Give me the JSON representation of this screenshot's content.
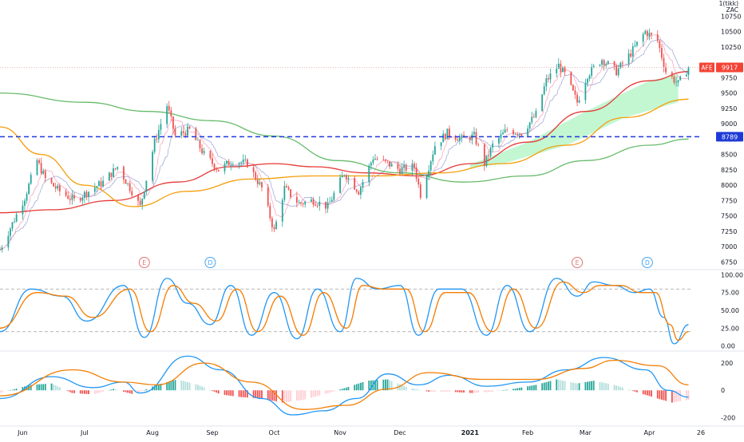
{
  "header": {
    "ticker_lines": [
      "1(tikk)",
      "ZAC"
    ]
  },
  "colors": {
    "up": "#26a69a",
    "down": "#ef5350",
    "ma_red": "#e53935",
    "ma_orange": "#f59e0b",
    "ma_green": "#66bb6a",
    "ma_thin_blue": "#7986cb",
    "ma_thin_pink": "#f48fb1",
    "fill_green": "#b9f6ca",
    "hline_blue": "#1e3ad6",
    "k_line": "#2196f3",
    "d_line": "#f57c00",
    "hist_up_strong": "#26a69a",
    "hist_up_weak": "#b2dfdb",
    "hist_down_strong": "#ef5350",
    "hist_down_weak": "#ffcdd2",
    "ref_line": "#9e9e9e"
  },
  "badges": {
    "price_tag": {
      "label": "AFE",
      "value": "9917"
    },
    "level_tag": {
      "value": "8789"
    }
  },
  "events": [
    {
      "type": "E",
      "date": "2020-07-30"
    },
    {
      "type": "D",
      "date": "2020-08-31"
    },
    {
      "type": "E",
      "date": "2021-02-25"
    },
    {
      "type": "D",
      "date": "2021-03-31"
    }
  ],
  "x_axis": {
    "labels": [
      {
        "text": "Jun",
        "date": "2020-06-01",
        "strong": false
      },
      {
        "text": "Jul",
        "date": "2020-07-01",
        "strong": false
      },
      {
        "text": "Aug",
        "date": "2020-08-03",
        "strong": false
      },
      {
        "text": "Sep",
        "date": "2020-09-01",
        "strong": false
      },
      {
        "text": "Oct",
        "date": "2020-10-01",
        "strong": false
      },
      {
        "text": "Nov",
        "date": "2020-11-02",
        "strong": false
      },
      {
        "text": "Dec",
        "date": "2020-12-01",
        "strong": false
      },
      {
        "text": "2021",
        "date": "2021-01-04",
        "strong": true
      },
      {
        "text": "Feb",
        "date": "2021-02-01",
        "strong": false
      },
      {
        "text": "Mar",
        "date": "2021-03-01",
        "strong": false
      },
      {
        "text": "Apr",
        "date": "2021-04-01",
        "strong": false
      },
      {
        "text": "26",
        "date": "2021-04-26",
        "strong": false
      }
    ]
  },
  "chart_data": [
    {
      "type": "candlestick",
      "title": "",
      "y_ticks": [
        "10750",
        "10500",
        "10250",
        "10000",
        "9750",
        "9500",
        "9250",
        "9000",
        "8750",
        "8500",
        "8250",
        "8000",
        "7750",
        "7500",
        "7250",
        "7000",
        "6750"
      ],
      "ylim": [
        6650,
        10950
      ],
      "horizontal_line": 8789,
      "last_price": 9917,
      "grid": false,
      "price_path": [
        [
          "2020-05-21",
          6950
        ],
        [
          "2020-06-02",
          7800
        ],
        [
          "2020-06-08",
          8400
        ],
        [
          "2020-06-12",
          8100
        ],
        [
          "2020-06-19",
          7900
        ],
        [
          "2020-06-26",
          7750
        ],
        [
          "2020-07-03",
          7900
        ],
        [
          "2020-07-10",
          8050
        ],
        [
          "2020-07-17",
          8300
        ],
        [
          "2020-07-24",
          7900
        ],
        [
          "2020-07-28",
          7650
        ],
        [
          "2020-08-04",
          8700
        ],
        [
          "2020-08-10",
          9300
        ],
        [
          "2020-08-14",
          8800
        ],
        [
          "2020-08-21",
          8900
        ],
        [
          "2020-08-28",
          8500
        ],
        [
          "2020-09-04",
          8250
        ],
        [
          "2020-09-11",
          8400
        ],
        [
          "2020-09-18",
          8350
        ],
        [
          "2020-09-25",
          7950
        ],
        [
          "2020-10-01",
          7250
        ],
        [
          "2020-10-06",
          7950
        ],
        [
          "2020-10-13",
          7700
        ],
        [
          "2020-10-20",
          7750
        ],
        [
          "2020-10-27",
          7650
        ],
        [
          "2020-11-04",
          8200
        ],
        [
          "2020-11-11",
          7900
        ],
        [
          "2020-11-18",
          8450
        ],
        [
          "2020-11-25",
          8350
        ],
        [
          "2020-12-01",
          8250
        ],
        [
          "2020-12-08",
          8300
        ],
        [
          "2020-12-11",
          7850
        ],
        [
          "2020-12-18",
          8650
        ],
        [
          "2020-12-24",
          8850
        ],
        [
          "2020-12-31",
          8750
        ],
        [
          "2021-01-06",
          8800
        ],
        [
          "2021-01-11",
          8350
        ],
        [
          "2021-01-15",
          8650
        ],
        [
          "2021-01-22",
          8900
        ],
        [
          "2021-01-29",
          8850
        ],
        [
          "2021-02-05",
          9150
        ],
        [
          "2021-02-10",
          9700
        ],
        [
          "2021-02-16",
          9950
        ],
        [
          "2021-02-19",
          9800
        ],
        [
          "2021-02-25",
          9350
        ],
        [
          "2021-03-02",
          9800
        ],
        [
          "2021-03-09",
          10050
        ],
        [
          "2021-03-16",
          9850
        ],
        [
          "2021-03-23",
          10150
        ],
        [
          "2021-03-30",
          10500
        ],
        [
          "2021-04-05",
          10350
        ],
        [
          "2021-04-09",
          9850
        ],
        [
          "2021-04-15",
          9650
        ],
        [
          "2021-04-20",
          9917
        ]
      ],
      "series": [
        {
          "name": "",
          "style": "ma_red",
          "points": [
            [
              "2020-05-21",
              7550
            ],
            [
              "2020-06-15",
              7600
            ],
            [
              "2020-07-15",
              7750
            ],
            [
              "2020-08-15",
              8050
            ],
            [
              "2020-09-10",
              8300
            ],
            [
              "2020-10-01",
              8350
            ],
            [
              "2020-10-20",
              8300
            ],
            [
              "2020-11-15",
              8200
            ],
            [
              "2020-12-10",
              8150
            ],
            [
              "2021-01-05",
              8350
            ],
            [
              "2021-02-01",
              8700
            ],
            [
              "2021-03-01",
              9200
            ],
            [
              "2021-04-01",
              9700
            ],
            [
              "2021-04-20",
              9850
            ]
          ]
        },
        {
          "name": "",
          "style": "ma_orange",
          "points": [
            [
              "2020-05-21",
              8950
            ],
            [
              "2020-06-10",
              8500
            ],
            [
              "2020-07-01",
              8000
            ],
            [
              "2020-07-25",
              7650
            ],
            [
              "2020-08-20",
              7900
            ],
            [
              "2020-09-20",
              8100
            ],
            [
              "2020-10-20",
              8150
            ],
            [
              "2020-11-20",
              8150
            ],
            [
              "2020-12-20",
              8200
            ],
            [
              "2021-01-20",
              8350
            ],
            [
              "2021-02-20",
              8650
            ],
            [
              "2021-03-20",
              9100
            ],
            [
              "2021-04-20",
              9400
            ]
          ]
        },
        {
          "name": "",
          "style": "ma_green",
          "points": [
            [
              "2020-05-21",
              9500
            ],
            [
              "2020-07-01",
              9350
            ],
            [
              "2020-08-01",
              9200
            ],
            [
              "2020-09-01",
              9050
            ],
            [
              "2020-10-01",
              8800
            ],
            [
              "2020-11-01",
              8400
            ],
            [
              "2020-12-01",
              8200
            ],
            [
              "2021-01-01",
              8050
            ],
            [
              "2021-02-01",
              8150
            ],
            [
              "2021-03-01",
              8400
            ],
            [
              "2021-04-01",
              8650
            ],
            [
              "2021-04-20",
              8750
            ]
          ]
        }
      ],
      "fill_between": {
        "from": "2021-01-04",
        "to": "2021-04-15",
        "upper": "ma_red",
        "lower": "ma_orange"
      }
    },
    {
      "type": "line",
      "title": "",
      "y_ticks": [
        "100.00",
        "75.00",
        "50.00",
        "25.00",
        "0.00"
      ],
      "ylim": [
        -5,
        105
      ],
      "ref_lines": [
        80,
        20
      ],
      "series": [
        {
          "name": "",
          "style": "k_line",
          "points": [
            [
              "2020-05-21",
              20
            ],
            [
              "2020-06-05",
              80
            ],
            [
              "2020-06-20",
              70
            ],
            [
              "2020-07-02",
              35
            ],
            [
              "2020-07-20",
              85
            ],
            [
              "2020-07-30",
              12
            ],
            [
              "2020-08-10",
              95
            ],
            [
              "2020-08-20",
              60
            ],
            [
              "2020-08-31",
              30
            ],
            [
              "2020-09-10",
              85
            ],
            [
              "2020-09-20",
              15
            ],
            [
              "2020-10-01",
              75
            ],
            [
              "2020-10-12",
              10
            ],
            [
              "2020-10-22",
              80
            ],
            [
              "2020-11-02",
              20
            ],
            [
              "2020-11-10",
              95
            ],
            [
              "2020-11-20",
              80
            ],
            [
              "2020-12-01",
              85
            ],
            [
              "2020-12-10",
              15
            ],
            [
              "2020-12-20",
              80
            ],
            [
              "2020-12-31",
              80
            ],
            [
              "2021-01-12",
              15
            ],
            [
              "2021-01-22",
              85
            ],
            [
              "2021-02-02",
              20
            ],
            [
              "2021-02-15",
              95
            ],
            [
              "2021-02-25",
              70
            ],
            [
              "2021-03-05",
              90
            ],
            [
              "2021-03-15",
              85
            ],
            [
              "2021-03-25",
              75
            ],
            [
              "2021-04-01",
              80
            ],
            [
              "2021-04-08",
              40
            ],
            [
              "2021-04-13",
              3
            ],
            [
              "2021-04-20",
              30
            ]
          ]
        },
        {
          "name": "",
          "style": "d_line",
          "points": [
            [
              "2020-05-21",
              25
            ],
            [
              "2020-06-08",
              75
            ],
            [
              "2020-06-22",
              70
            ],
            [
              "2020-07-05",
              40
            ],
            [
              "2020-07-23",
              80
            ],
            [
              "2020-08-02",
              20
            ],
            [
              "2020-08-13",
              85
            ],
            [
              "2020-08-23",
              60
            ],
            [
              "2020-09-03",
              35
            ],
            [
              "2020-09-13",
              80
            ],
            [
              "2020-09-23",
              20
            ],
            [
              "2020-10-04",
              70
            ],
            [
              "2020-10-15",
              15
            ],
            [
              "2020-10-25",
              75
            ],
            [
              "2020-11-05",
              25
            ],
            [
              "2020-11-13",
              85
            ],
            [
              "2020-11-23",
              80
            ],
            [
              "2020-12-04",
              80
            ],
            [
              "2020-12-13",
              20
            ],
            [
              "2020-12-23",
              75
            ],
            [
              "2021-01-03",
              75
            ],
            [
              "2021-01-15",
              20
            ],
            [
              "2021-01-25",
              80
            ],
            [
              "2021-02-05",
              25
            ],
            [
              "2021-02-18",
              90
            ],
            [
              "2021-02-28",
              75
            ],
            [
              "2021-03-08",
              85
            ],
            [
              "2021-03-18",
              85
            ],
            [
              "2021-03-28",
              75
            ],
            [
              "2021-04-04",
              75
            ],
            [
              "2021-04-11",
              30
            ],
            [
              "2021-04-15",
              8
            ],
            [
              "2021-04-20",
              20
            ]
          ]
        }
      ]
    },
    {
      "type": "bar+line",
      "title": "",
      "y_ticks": [
        "200",
        "0",
        "-200"
      ],
      "ylim": [
        -250,
        270
      ],
      "series": [
        {
          "name": "",
          "style": "k_line",
          "points": [
            [
              "2020-05-21",
              -60
            ],
            [
              "2020-06-15",
              100
            ],
            [
              "2020-07-05",
              20
            ],
            [
              "2020-07-20",
              60
            ],
            [
              "2020-07-28",
              -20
            ],
            [
              "2020-08-20",
              250
            ],
            [
              "2020-09-05",
              150
            ],
            [
              "2020-09-25",
              -60
            ],
            [
              "2020-10-10",
              -180
            ],
            [
              "2020-10-25",
              -150
            ],
            [
              "2020-11-10",
              -60
            ],
            [
              "2020-11-25",
              120
            ],
            [
              "2020-12-10",
              40
            ],
            [
              "2020-12-25",
              110
            ],
            [
              "2021-01-12",
              30
            ],
            [
              "2021-02-01",
              60
            ],
            [
              "2021-02-20",
              150
            ],
            [
              "2021-03-10",
              240
            ],
            [
              "2021-03-30",
              150
            ],
            [
              "2021-04-10",
              0
            ],
            [
              "2021-04-20",
              -50
            ]
          ]
        },
        {
          "name": "",
          "style": "d_line",
          "points": [
            [
              "2020-05-21",
              -40
            ],
            [
              "2020-06-25",
              150
            ],
            [
              "2020-07-20",
              60
            ],
            [
              "2020-08-05",
              40
            ],
            [
              "2020-08-28",
              200
            ],
            [
              "2020-09-20",
              60
            ],
            [
              "2020-10-15",
              -140
            ],
            [
              "2020-11-05",
              -110
            ],
            [
              "2020-11-25",
              10
            ],
            [
              "2020-12-15",
              130
            ],
            [
              "2021-01-10",
              80
            ],
            [
              "2021-02-05",
              80
            ],
            [
              "2021-02-28",
              160
            ],
            [
              "2021-03-15",
              220
            ],
            [
              "2021-04-05",
              180
            ],
            [
              "2021-04-20",
              40
            ]
          ]
        }
      ],
      "histogram": [
        [
          "2020-05-21",
          -20
        ],
        [
          "2020-06-05",
          40
        ],
        [
          "2020-06-15",
          50
        ],
        [
          "2020-06-25",
          -20
        ],
        [
          "2020-07-05",
          -30
        ],
        [
          "2020-07-15",
          10
        ],
        [
          "2020-07-25",
          -30
        ],
        [
          "2020-08-05",
          40
        ],
        [
          "2020-08-15",
          80
        ],
        [
          "2020-08-25",
          40
        ],
        [
          "2020-09-05",
          -30
        ],
        [
          "2020-09-15",
          -50
        ],
        [
          "2020-09-25",
          -60
        ],
        [
          "2020-10-05",
          -90
        ],
        [
          "2020-10-15",
          -70
        ],
        [
          "2020-10-25",
          -30
        ],
        [
          "2020-11-05",
          20
        ],
        [
          "2020-11-15",
          70
        ],
        [
          "2020-11-25",
          80
        ],
        [
          "2020-12-05",
          20
        ],
        [
          "2020-12-15",
          -10
        ],
        [
          "2020-12-25",
          -10
        ],
        [
          "2021-01-05",
          -20
        ],
        [
          "2021-01-15",
          -10
        ],
        [
          "2021-01-25",
          10
        ],
        [
          "2021-02-05",
          40
        ],
        [
          "2021-02-15",
          80
        ],
        [
          "2021-02-25",
          50
        ],
        [
          "2021-03-05",
          70
        ],
        [
          "2021-03-15",
          40
        ],
        [
          "2021-03-25",
          -10
        ],
        [
          "2021-04-05",
          -60
        ],
        [
          "2021-04-12",
          -90
        ],
        [
          "2021-04-20",
          -70
        ]
      ]
    }
  ]
}
